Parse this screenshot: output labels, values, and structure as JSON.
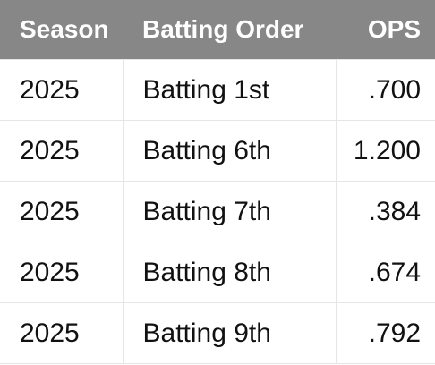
{
  "table": {
    "header": [
      "Season",
      "Batting Order",
      "OPS"
    ],
    "rows": [
      [
        "2025",
        "Batting 1st",
        ".700"
      ],
      [
        "2025",
        "Batting 6th",
        "1.200"
      ],
      [
        "2025",
        "Batting 7th",
        ".384"
      ],
      [
        "2025",
        "Batting 8th",
        ".674"
      ],
      [
        "2025",
        "Batting 9th",
        ".792"
      ]
    ]
  }
}
